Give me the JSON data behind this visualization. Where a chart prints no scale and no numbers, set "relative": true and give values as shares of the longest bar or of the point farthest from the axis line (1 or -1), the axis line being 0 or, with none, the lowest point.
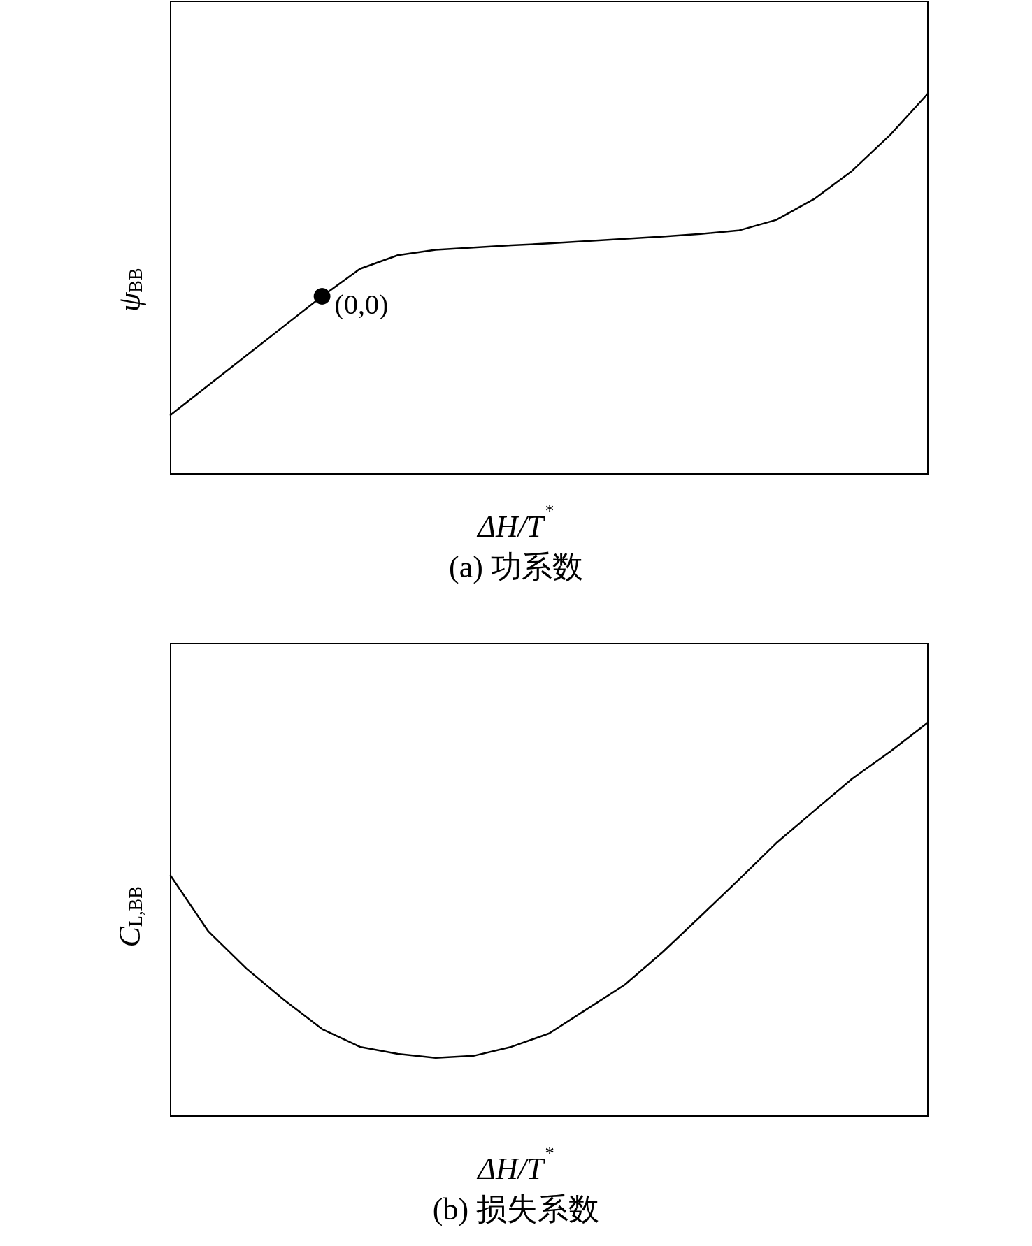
{
  "chart_data": [
    {
      "type": "line",
      "title": "(a) 功系数",
      "xlabel": "ΔH/T$^{*}$",
      "ylabel": "ψ$_{BB}$",
      "relative": true,
      "grid": false,
      "marker": "none",
      "line_style": "solid",
      "categories": [
        null,
        null,
        null,
        null,
        null,
        null,
        null,
        null,
        null,
        null,
        null,
        null,
        null,
        null,
        null,
        null,
        null,
        null,
        null,
        null,
        null
      ],
      "annotations": [
        "(0,0)"
      ],
      "series": [
        {
          "color": "#000000",
          "values": [
            0.155,
            0.233,
            0.311,
            0.389,
            0.467,
            0.539,
            0.575,
            0.589,
            0.595,
            0.601,
            0.606,
            0.612,
            0.618,
            0.624,
            0.631,
            0.64,
            0.668,
            0.723,
            0.797,
            0.891,
            1
          ]
        }
      ]
    },
    {
      "type": "line",
      "title": "(b) 损失系数",
      "xlabel": "ΔH/T$^{*}$",
      "ylabel": "C$_{L,BB}$",
      "relative": true,
      "grid": false,
      "marker": "none",
      "line_style": "solid",
      "categories": [
        null,
        null,
        null,
        null,
        null,
        null,
        null,
        null,
        null,
        null,
        null,
        null,
        null,
        null,
        null,
        null,
        null,
        null,
        null,
        null,
        null
      ],
      "series": [
        {
          "color": "#000000",
          "values": [
            0.611,
            0.469,
            0.375,
            0.295,
            0.221,
            0.176,
            0.158,
            0.148,
            0.153,
            0.176,
            0.21,
            0.272,
            0.334,
            0.417,
            0.508,
            0.6,
            0.694,
            0.776,
            0.857,
            0.926,
            1
          ]
        }
      ]
    }
  ]
}
